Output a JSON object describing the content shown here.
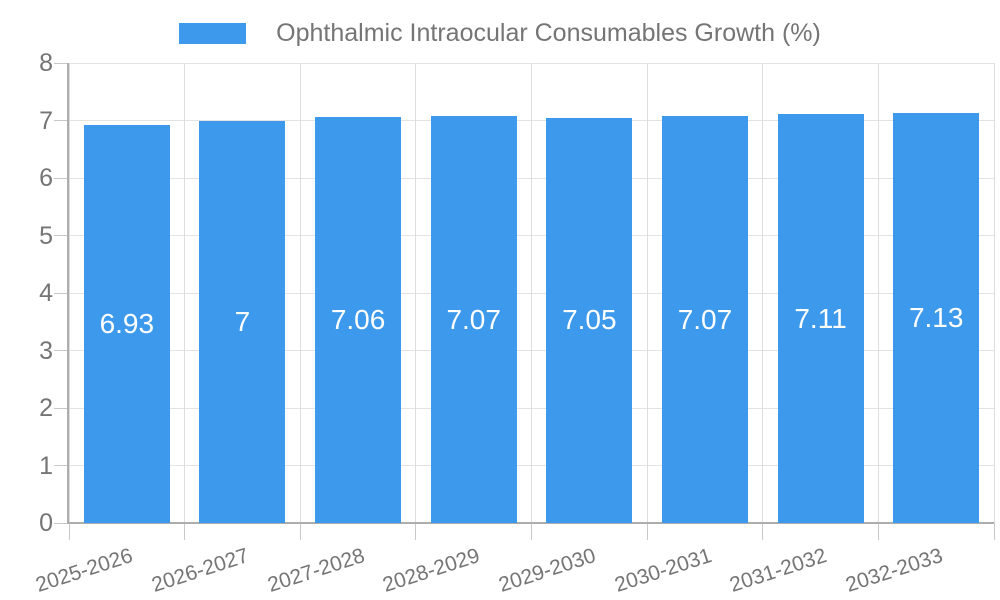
{
  "legend": {
    "label": "Ophthalmic Intraocular Consumables Growth (%)"
  },
  "colors": {
    "bar": "#3d99ec",
    "axis_text": "#757575",
    "bar_label": "#ffffff",
    "grid": "#e3e3e3",
    "axis_line": "#adadad"
  },
  "chart_data": {
    "type": "bar",
    "title": "Ophthalmic Intraocular Consumables Growth (%)",
    "categories": [
      "2025-2026",
      "2026-2027",
      "2027-2028",
      "2028-2029",
      "2029-2030",
      "2030-2031",
      "2031-2032",
      "2032-2033"
    ],
    "values": [
      6.93,
      7,
      7.06,
      7.07,
      7.05,
      7.07,
      7.11,
      7.13
    ],
    "bar_labels": [
      "6.93",
      "7",
      "7.06",
      "7.07",
      "7.05",
      "7.07",
      "7.11",
      "7.13"
    ],
    "xlabel": "",
    "ylabel": "",
    "ylim": [
      0,
      8
    ],
    "y_ticks": [
      0,
      1,
      2,
      3,
      4,
      5,
      6,
      7,
      8
    ],
    "grid": true,
    "legend_position": "top"
  }
}
